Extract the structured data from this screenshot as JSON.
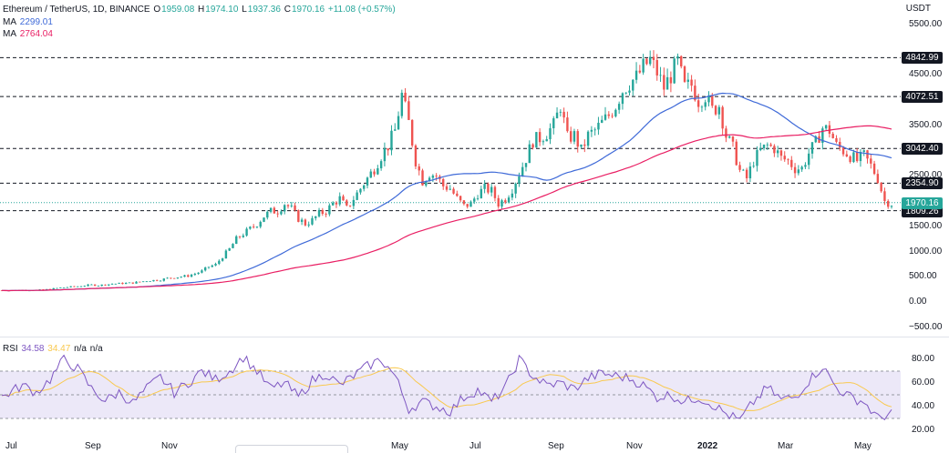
{
  "header": {
    "symbol": "Ethereum / TetherUS, 1D, BINANCE",
    "o_label": "O",
    "o_value": "1959.08",
    "h_label": "H",
    "h_value": "1974.10",
    "l_label": "L",
    "l_value": "1937.36",
    "c_label": "C",
    "c_value": "1970.16",
    "change": "+11.08 (+0.57%)"
  },
  "ma_fast": {
    "label": "MA",
    "value": "2299.01",
    "color": "#3f6ad8"
  },
  "ma_slow": {
    "label": "MA",
    "value": "2764.04",
    "color": "#e91e63"
  },
  "price_axis": {
    "currency": "USDT",
    "ticks": [
      "5500.00",
      "4500.00",
      "3500.00",
      "2500.00",
      "1500.00",
      "1000.00",
      "500.00",
      "0.00",
      "−500.00"
    ]
  },
  "hlines": [
    {
      "label": "4842.99",
      "value": 4842.99
    },
    {
      "label": "4072.51",
      "value": 4072.51
    },
    {
      "label": "3042.40",
      "value": 3042.4
    },
    {
      "label": "2354.90",
      "value": 2354.9
    },
    {
      "label": "1809.26",
      "value": 1809.26
    }
  ],
  "current_price": {
    "label": "1970.16",
    "value": 1970.16
  },
  "rsi": {
    "label": "RSI",
    "value": "34.58",
    "ma_value": "34.47",
    "extra1": "n/a",
    "extra2": "n/a",
    "ticks": [
      "80.00",
      "60.00",
      "40.00",
      "20.00"
    ],
    "upper": 70,
    "lower": 30,
    "mid": 50,
    "band_color": "#ece8f8",
    "line_color": "#7e57c2",
    "ma_color": "#f9c94f"
  },
  "time_axis": [
    "Jul",
    "Sep",
    "Nov",
    "May",
    "Jul",
    "Sep",
    "Nov",
    "2022",
    "Mar",
    "May"
  ],
  "colors": {
    "up": "#26a69a",
    "down": "#ef5350",
    "grid_line": "#131722"
  },
  "chart_data": {
    "type": "candlestick",
    "title": "Ethereum / TetherUS, 1D, BINANCE",
    "ylabel": "USDT",
    "ylim": [
      -500,
      5500
    ],
    "price_keypoints": [
      [
        0,
        230
      ],
      [
        6,
        240
      ],
      [
        9,
        290
      ],
      [
        11,
        310
      ],
      [
        13,
        340
      ],
      [
        14,
        330
      ],
      [
        16,
        360
      ],
      [
        19,
        380
      ],
      [
        21,
        420
      ],
      [
        23,
        440
      ],
      [
        24,
        470
      ],
      [
        27,
        520
      ],
      [
        28,
        560
      ],
      [
        29,
        610
      ],
      [
        30,
        700
      ],
      [
        31,
        740
      ],
      [
        32,
        900
      ],
      [
        33,
        1050
      ],
      [
        34,
        1250
      ],
      [
        35,
        1350
      ],
      [
        36,
        1450
      ],
      [
        37,
        1550
      ],
      [
        38,
        1700
      ],
      [
        39,
        1800
      ],
      [
        40,
        1800
      ],
      [
        41,
        1950
      ],
      [
        42,
        1850
      ],
      [
        43,
        1650
      ],
      [
        44,
        1550
      ],
      [
        45,
        1620
      ],
      [
        46,
        1750
      ],
      [
        47,
        1800
      ],
      [
        48,
        1950
      ],
      [
        49,
        2050
      ],
      [
        50,
        1850
      ],
      [
        51,
        2050
      ],
      [
        52,
        2250
      ],
      [
        53,
        2450
      ],
      [
        54,
        2650
      ],
      [
        55,
        2900
      ],
      [
        56,
        3100
      ],
      [
        57,
        3400
      ],
      [
        58,
        4100
      ],
      [
        59,
        3550
      ],
      [
        60,
        2800
      ],
      [
        61,
        2400
      ],
      [
        62,
        2550
      ],
      [
        63,
        2500
      ],
      [
        64,
        2300
      ],
      [
        65,
        2250
      ],
      [
        66,
        2050
      ],
      [
        67,
        1900
      ],
      [
        68,
        1950
      ],
      [
        69,
        2150
      ],
      [
        70,
        2250
      ],
      [
        71,
        2200
      ],
      [
        72,
        1950
      ],
      [
        73,
        2050
      ],
      [
        74,
        2250
      ],
      [
        75,
        2550
      ],
      [
        76,
        2850
      ],
      [
        77,
        3200
      ],
      [
        78,
        3250
      ],
      [
        79,
        3350
      ],
      [
        80,
        3500
      ],
      [
        81,
        3900
      ],
      [
        82,
        3250
      ],
      [
        83,
        3300
      ],
      [
        84,
        3000
      ],
      [
        85,
        3300
      ],
      [
        86,
        3400
      ],
      [
        87,
        3550
      ],
      [
        88,
        3700
      ],
      [
        89,
        3900
      ],
      [
        90,
        4200
      ],
      [
        91,
        4350
      ],
      [
        92,
        4450
      ],
      [
        93,
        4650
      ],
      [
        94,
        4800
      ],
      [
        95,
        4550
      ],
      [
        96,
        4250
      ],
      [
        97,
        4500
      ],
      [
        98,
        4750
      ],
      [
        99,
        4250
      ],
      [
        100,
        4300
      ],
      [
        101,
        4000
      ],
      [
        102,
        4100
      ],
      [
        103,
        3800
      ],
      [
        104,
        3900
      ],
      [
        105,
        3300
      ],
      [
        106,
        3050
      ],
      [
        107,
        2600
      ],
      [
        108,
        2450
      ],
      [
        109,
        2800
      ],
      [
        110,
        3000
      ],
      [
        111,
        3100
      ],
      [
        112,
        3050
      ],
      [
        113,
        2850
      ],
      [
        114,
        2800
      ],
      [
        115,
        2650
      ],
      [
        116,
        2650
      ],
      [
        117,
        2950
      ],
      [
        118,
        3150
      ],
      [
        119,
        3450
      ],
      [
        120,
        3400
      ],
      [
        121,
        3100
      ],
      [
        122,
        3000
      ],
      [
        123,
        2900
      ],
      [
        124,
        2800
      ],
      [
        125,
        2900
      ],
      [
        126,
        2700
      ],
      [
        127,
        2450
      ],
      [
        128,
        2000
      ],
      [
        129,
        1950
      ]
    ],
    "rsi_keypoints": [
      [
        0,
        48
      ],
      [
        3,
        58
      ],
      [
        5,
        52
      ],
      [
        7,
        63
      ],
      [
        9,
        80
      ],
      [
        11,
        72
      ],
      [
        13,
        55
      ],
      [
        15,
        45
      ],
      [
        17,
        52
      ],
      [
        19,
        43
      ],
      [
        21,
        55
      ],
      [
        23,
        65
      ],
      [
        25,
        52
      ],
      [
        27,
        60
      ],
      [
        29,
        70
      ],
      [
        31,
        63
      ],
      [
        33,
        70
      ],
      [
        35,
        82
      ],
      [
        37,
        70
      ],
      [
        39,
        55
      ],
      [
        41,
        60
      ],
      [
        43,
        48
      ],
      [
        45,
        62
      ],
      [
        47,
        68
      ],
      [
        49,
        58
      ],
      [
        51,
        66
      ],
      [
        53,
        74
      ],
      [
        55,
        80
      ],
      [
        57,
        66
      ],
      [
        59,
        38
      ],
      [
        61,
        44
      ],
      [
        63,
        40
      ],
      [
        65,
        36
      ],
      [
        67,
        48
      ],
      [
        69,
        54
      ],
      [
        71,
        44
      ],
      [
        73,
        56
      ],
      [
        75,
        80
      ],
      [
        77,
        66
      ],
      [
        79,
        58
      ],
      [
        81,
        60
      ],
      [
        83,
        55
      ],
      [
        85,
        64
      ],
      [
        87,
        68
      ],
      [
        89,
        66
      ],
      [
        91,
        64
      ],
      [
        93,
        58
      ],
      [
        95,
        48
      ],
      [
        97,
        50
      ],
      [
        99,
        44
      ],
      [
        101,
        48
      ],
      [
        103,
        42
      ],
      [
        105,
        34
      ],
      [
        107,
        28
      ],
      [
        109,
        44
      ],
      [
        111,
        56
      ],
      [
        113,
        46
      ],
      [
        115,
        48
      ],
      [
        117,
        62
      ],
      [
        119,
        74
      ],
      [
        121,
        56
      ],
      [
        123,
        48
      ],
      [
        125,
        44
      ],
      [
        127,
        30
      ],
      [
        129,
        35
      ]
    ],
    "ma_fast_period": 20,
    "ma_slow_period": 50
  }
}
